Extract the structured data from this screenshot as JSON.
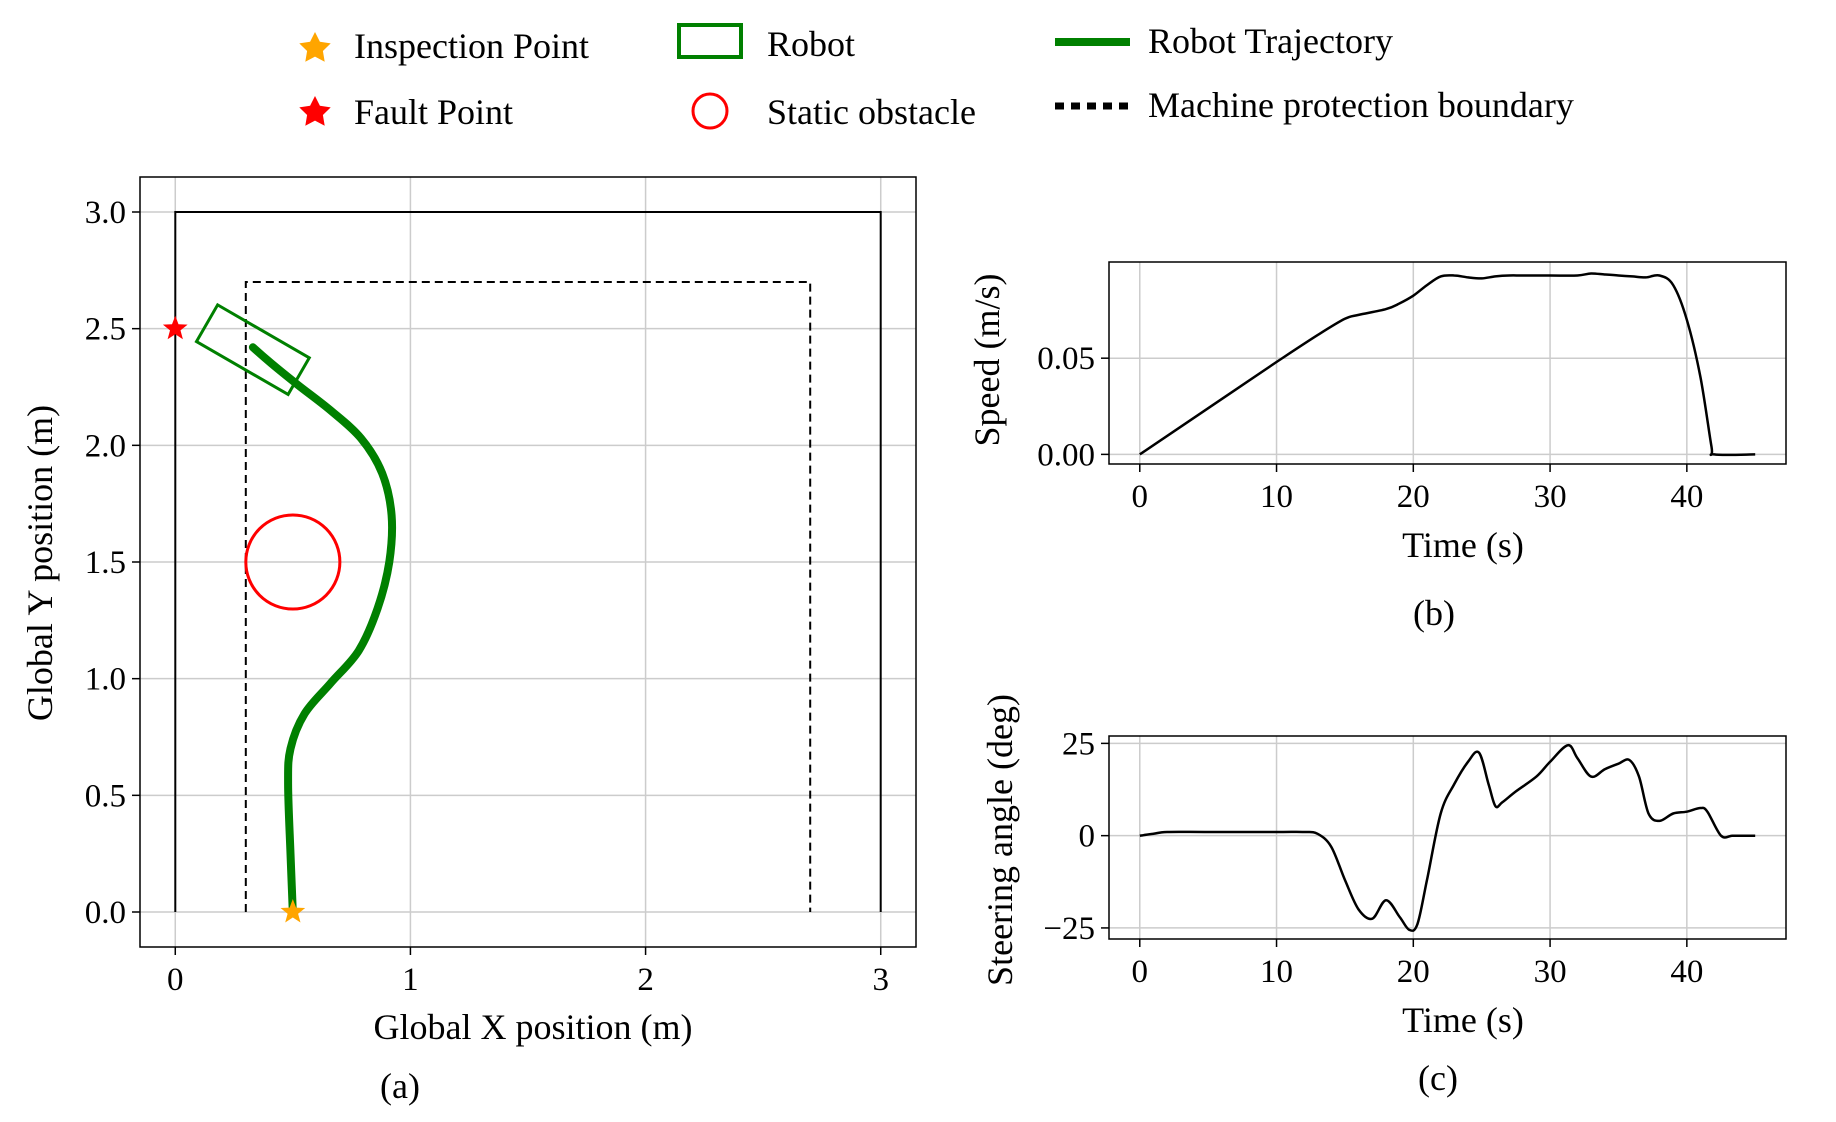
{
  "legend": {
    "inspection_point": "Inspection Point",
    "fault_point": "Fault Point",
    "robot": "Robot",
    "static_obstacle": "Static obstacle",
    "robot_trajectory": "Robot Trajectory",
    "machine_boundary": "Machine protection boundary"
  },
  "colors": {
    "inspection_point": "#FFA500",
    "fault_point": "#FF0000",
    "robot": "#008000",
    "obstacle": "#FF0000",
    "trajectory": "#008000",
    "line": "#000000",
    "grid": "#CCCCCC"
  },
  "chart_data": [
    {
      "type": "line",
      "panel_label": "(a)",
      "xlabel": "Global X position (m)",
      "ylabel": "Global Y position (m)",
      "xlim": [
        -0.15,
        3.15
      ],
      "ylim": [
        -0.15,
        3.15
      ],
      "x_ticks": [
        0,
        1,
        2,
        3
      ],
      "x_tick_labels": [
        "0",
        "1",
        "2",
        "3"
      ],
      "y_ticks": [
        0.0,
        0.5,
        1.0,
        1.5,
        2.0,
        2.5,
        3.0
      ],
      "y_tick_labels": [
        "0.0",
        "0.5",
        "1.0",
        "1.5",
        "2.0",
        "2.5",
        "3.0"
      ],
      "grid": true,
      "workspace_boundary": [
        [
          0,
          0
        ],
        [
          0,
          3
        ],
        [
          3,
          3
        ],
        [
          3,
          0
        ]
      ],
      "machine_protection_boundary": [
        [
          0.3,
          0
        ],
        [
          0.3,
          2.7
        ],
        [
          2.7,
          2.7
        ],
        [
          2.7,
          0
        ]
      ],
      "inspection_point": [
        0.5,
        0.0
      ],
      "fault_point": [
        0.0,
        2.5
      ],
      "static_obstacle": {
        "center": [
          0.5,
          1.5
        ],
        "radius": 0.2
      },
      "robot": {
        "center": [
          0.33,
          2.41
        ],
        "length": 0.45,
        "width": 0.18,
        "heading_deg": -30
      },
      "trajectory": {
        "x": [
          0.5,
          0.49,
          0.48,
          0.49,
          0.55,
          0.66,
          0.78,
          0.86,
          0.91,
          0.92,
          0.88,
          0.79,
          0.66,
          0.52,
          0.41,
          0.33
        ],
        "y": [
          0.0,
          0.25,
          0.55,
          0.7,
          0.85,
          0.98,
          1.12,
          1.3,
          1.5,
          1.7,
          1.88,
          2.03,
          2.15,
          2.26,
          2.35,
          2.42
        ]
      }
    },
    {
      "type": "line",
      "panel_label": "(b)",
      "xlabel": "Time (s)",
      "ylabel": "Speed (m/s)",
      "xlim": [
        -2.25,
        47.25
      ],
      "ylim": [
        -0.005,
        0.1
      ],
      "x_ticks": [
        0,
        10,
        20,
        30,
        40
      ],
      "x_tick_labels": [
        "0",
        "10",
        "20",
        "30",
        "40"
      ],
      "y_ticks": [
        0.0,
        0.05
      ],
      "y_tick_labels": [
        "0.00",
        "0.05"
      ],
      "grid": true,
      "series": [
        {
          "x": [
            0,
            5,
            10,
            13,
            15,
            16,
            18,
            19,
            20,
            21,
            22,
            23,
            24,
            25,
            26,
            27,
            28,
            30,
            32,
            33,
            34,
            35,
            36,
            37,
            38,
            39,
            40,
            41,
            41.8,
            42,
            45
          ],
          "y": [
            0.0,
            0.024,
            0.048,
            0.062,
            0.0705,
            0.0725,
            0.0755,
            0.0785,
            0.0825,
            0.088,
            0.0925,
            0.093,
            0.092,
            0.0915,
            0.0925,
            0.093,
            0.093,
            0.093,
            0.093,
            0.094,
            0.0935,
            0.093,
            0.0925,
            0.092,
            0.093,
            0.088,
            0.07,
            0.04,
            0.004,
            0.0,
            0.0
          ]
        }
      ]
    },
    {
      "type": "line",
      "panel_label": "(c)",
      "xlabel": "Time (s)",
      "ylabel": "Steering angle (deg)",
      "xlim": [
        -2.25,
        47.25
      ],
      "ylim": [
        -28,
        27
      ],
      "x_ticks": [
        0,
        10,
        20,
        30,
        40
      ],
      "x_tick_labels": [
        "0",
        "10",
        "20",
        "30",
        "40"
      ],
      "y_ticks": [
        -25,
        0,
        25
      ],
      "y_tick_labels": [
        "−25",
        "0",
        "25"
      ],
      "grid": true,
      "series": [
        {
          "x": [
            0,
            1,
            2,
            5,
            10,
            12,
            13,
            14,
            15,
            16,
            17,
            18,
            19,
            19.7,
            20.3,
            21,
            22,
            23,
            24,
            24.8,
            25.5,
            26,
            26.5,
            27.5,
            29,
            30,
            31.3,
            32,
            33,
            34,
            35,
            35.8,
            36.5,
            37.2,
            38,
            39,
            40,
            41,
            41.5,
            42.5,
            43.3,
            44,
            45
          ],
          "y": [
            0,
            0.5,
            1,
            1,
            1,
            1,
            0.5,
            -3,
            -12,
            -20,
            -22.5,
            -17.5,
            -22,
            -25.5,
            -24,
            -12,
            6,
            14,
            20,
            22.5,
            14,
            8,
            9,
            12,
            16,
            20,
            24.5,
            21,
            16,
            18,
            19.5,
            20.5,
            16,
            6,
            4,
            6,
            6.5,
            7.5,
            6.5,
            0,
            0,
            0,
            0
          ]
        }
      ]
    }
  ]
}
